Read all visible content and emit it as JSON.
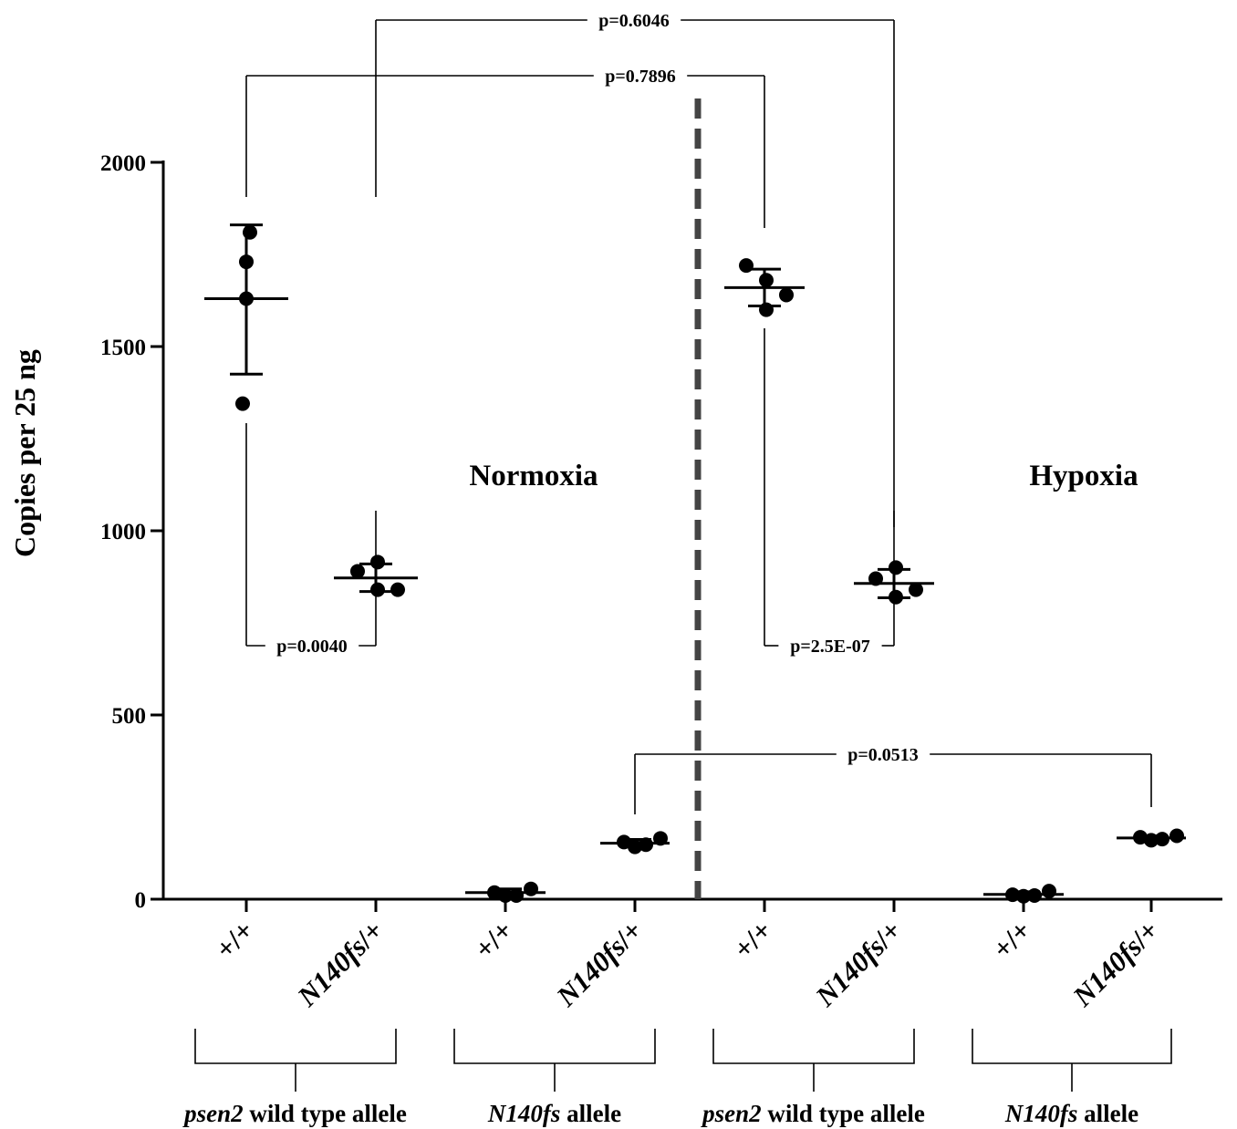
{
  "chart_data": {
    "type": "scatter",
    "ylabel": "Copies per 25 ng",
    "ylim": [
      0,
      2000
    ],
    "yticks": [
      0,
      500,
      1000,
      1500,
      2000
    ],
    "conditions": [
      "Normoxia",
      "Hypoxia"
    ],
    "categories": [
      "+/+",
      "N140fs/+",
      "+/+",
      "N140fs/+",
      "+/+",
      "N140fs/+",
      "+/+",
      "N140fs/+"
    ],
    "groups": [
      {
        "label_italic": "psen2",
        "label_rest": " wild type allele"
      },
      {
        "label_italic": "N140fs",
        "label_rest": " allele"
      },
      {
        "label_italic": "psen2",
        "label_rest": " wild type allele"
      },
      {
        "label_italic": "N140fs",
        "label_rest": " allele"
      }
    ],
    "series": [
      {
        "condition": "Normoxia",
        "allele": "psen2 wild type allele",
        "genotype": "+/+",
        "points": [
          1810,
          1730,
          1630,
          1345
        ],
        "mean": 1630,
        "sd_low": 1425,
        "sd_high": 1830
      },
      {
        "condition": "Normoxia",
        "allele": "psen2 wild type allele",
        "genotype": "N140fs/+",
        "points": [
          890,
          915,
          840,
          840
        ],
        "mean": 872,
        "sd_low": 835,
        "sd_high": 910
      },
      {
        "condition": "Normoxia",
        "allele": "N140fs allele",
        "genotype": "+/+",
        "points": [
          18,
          10,
          10,
          28
        ],
        "mean": 18,
        "sd_low": 8,
        "sd_high": 28
      },
      {
        "condition": "Normoxia",
        "allele": "N140fs allele",
        "genotype": "N140fs/+",
        "points": [
          155,
          142,
          148,
          165
        ],
        "mean": 152,
        "sd_low": 145,
        "sd_high": 162
      },
      {
        "condition": "Hypoxia",
        "allele": "psen2 wild type allele",
        "genotype": "+/+",
        "points": [
          1720,
          1680,
          1600,
          1640
        ],
        "mean": 1660,
        "sd_low": 1610,
        "sd_high": 1710
      },
      {
        "condition": "Hypoxia",
        "allele": "psen2 wild type allele",
        "genotype": "N140fs/+",
        "points": [
          870,
          900,
          820,
          840
        ],
        "mean": 857,
        "sd_low": 818,
        "sd_high": 895
      },
      {
        "condition": "Hypoxia",
        "allele": "N140fs allele",
        "genotype": "+/+",
        "points": [
          12,
          8,
          10,
          22
        ],
        "mean": 13,
        "sd_low": 6,
        "sd_high": 20
      },
      {
        "condition": "Hypoxia",
        "allele": "N140fs allele",
        "genotype": "N140fs/+",
        "points": [
          168,
          160,
          163,
          172
        ],
        "mean": 166,
        "sd_low": 160,
        "sd_high": 172
      }
    ],
    "comparisons": [
      {
        "label": "p=0.6046",
        "between": [
          1,
          5
        ]
      },
      {
        "label": "p=0.7896",
        "between": [
          0,
          4
        ]
      },
      {
        "label": "p=0.0040",
        "between": [
          0,
          1
        ]
      },
      {
        "label": "p=2.5E-07",
        "between": [
          4,
          5
        ]
      },
      {
        "label": "p=0.0513",
        "between": [
          3,
          7
        ]
      }
    ]
  }
}
